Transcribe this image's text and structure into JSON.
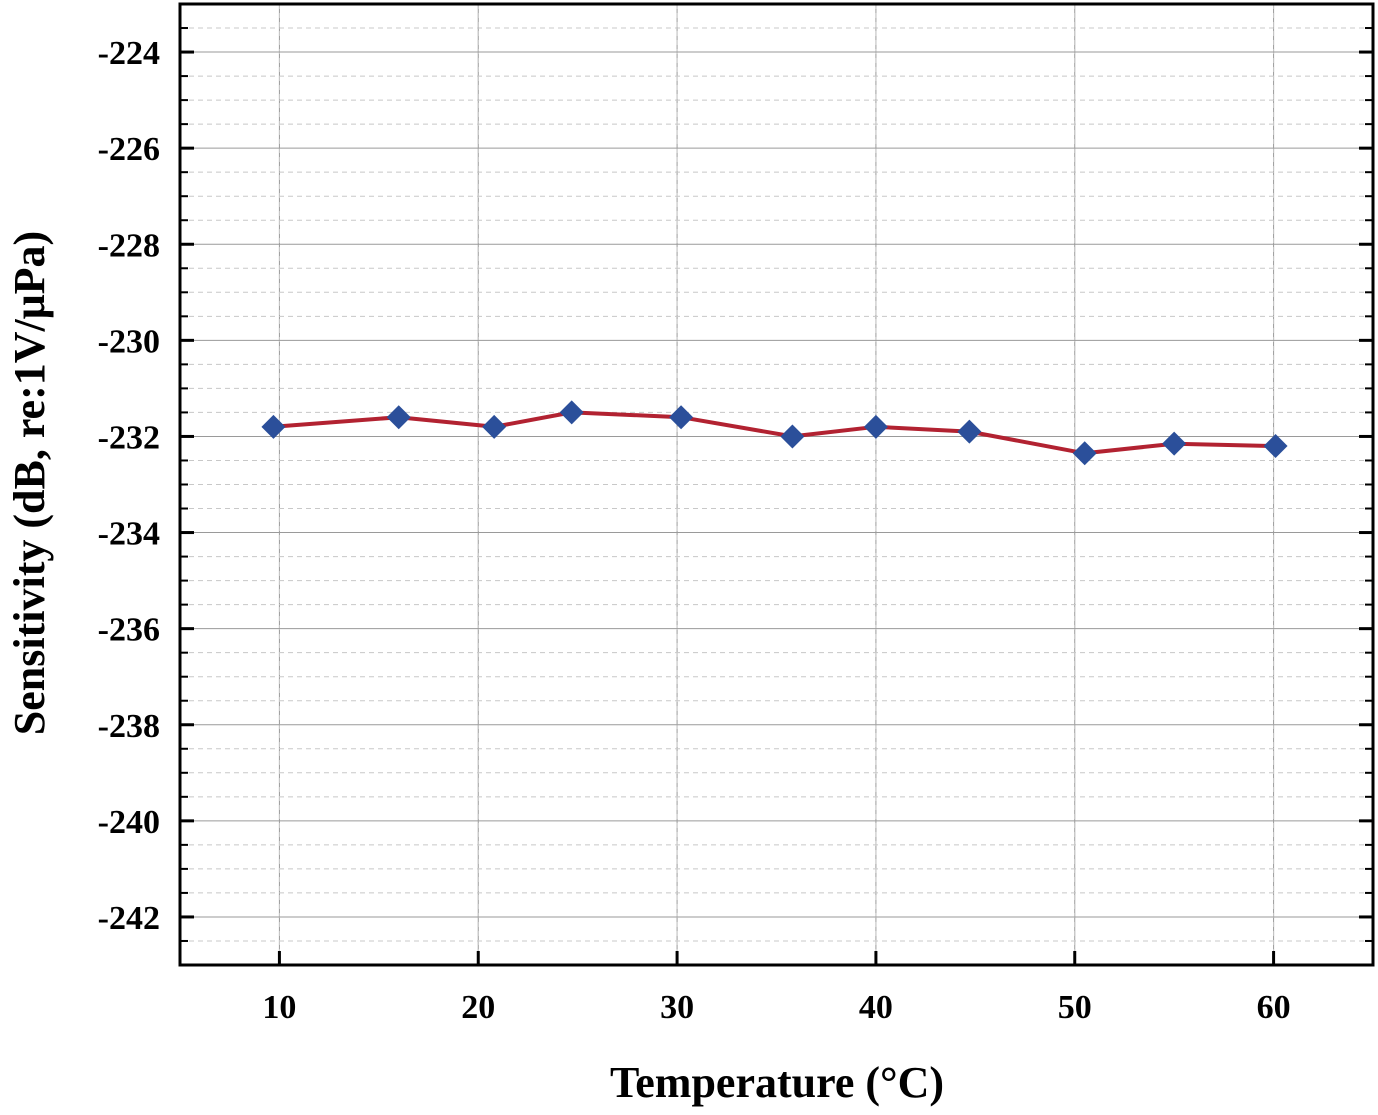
{
  "chart_data": {
    "type": "line",
    "title": "",
    "xlabel": "Temperature (°C)",
    "ylabel": "Sensitivity (dB, re:1V/μPa)",
    "xlim": [
      5,
      65
    ],
    "ylim": [
      -243,
      -223
    ],
    "x_ticks": [
      "10",
      "20",
      "30",
      "40",
      "50",
      "60"
    ],
    "x_tick_values": [
      10,
      20,
      30,
      40,
      50,
      60
    ],
    "y_ticks": [
      "-224",
      "-226",
      "-228",
      "-230",
      "-232",
      "-234",
      "-236",
      "-238",
      "-240",
      "-242"
    ],
    "y_tick_values": [
      -224,
      -226,
      -228,
      -230,
      -232,
      -234,
      -236,
      -238,
      -240,
      -242
    ],
    "grid": true,
    "series": [
      {
        "line_color": "#b22231",
        "marker_color": "#2b4f9a",
        "marker": "diamond",
        "x": [
          9.7,
          16.0,
          20.8,
          24.7,
          30.2,
          35.8,
          40.0,
          44.7,
          50.5,
          55.0,
          60.1
        ],
        "y": [
          -231.8,
          -231.6,
          -231.8,
          -231.5,
          -231.6,
          -232.0,
          -231.8,
          -231.9,
          -232.35,
          -232.15,
          -232.2
        ]
      }
    ]
  }
}
